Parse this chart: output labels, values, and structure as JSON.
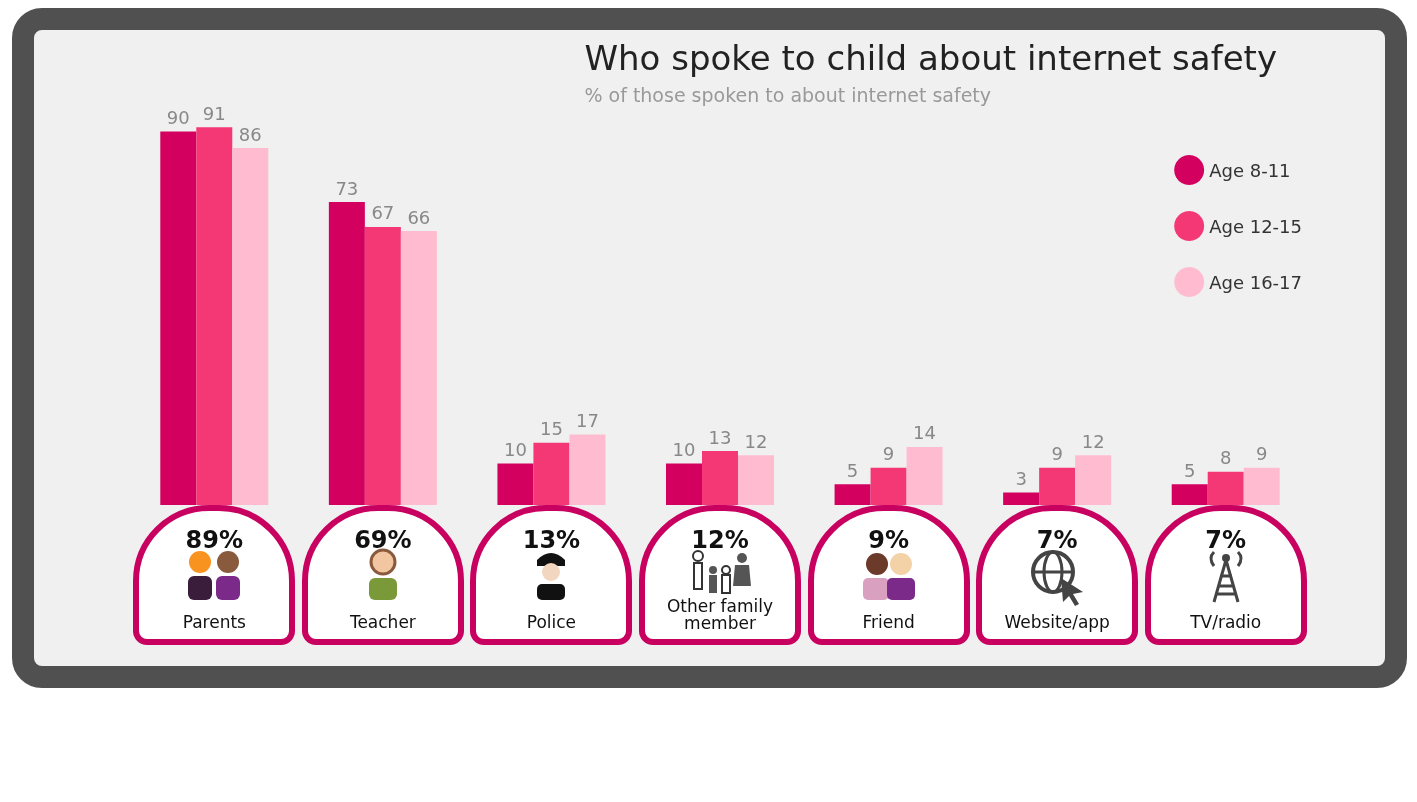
{
  "chart_data": {
    "type": "bar",
    "title": "Who spoke to child about internet safety",
    "subtitle": "% of those spoken to about internet safety",
    "categories": [
      "Parents",
      "Teacher",
      "Police",
      "Other family member",
      "Friend",
      "Website/app",
      "TV/radio"
    ],
    "series": [
      {
        "name": "Age 8-11",
        "color": "#d4005f",
        "values": [
          90,
          73,
          10,
          10,
          5,
          3,
          5
        ]
      },
      {
        "name": "Age 12-15",
        "color": "#f43875",
        "values": [
          91,
          67,
          15,
          13,
          9,
          9,
          8
        ]
      },
      {
        "name": "Age 16-17",
        "color": "#ffbcd0",
        "values": [
          86,
          66,
          17,
          12,
          14,
          12,
          9
        ]
      }
    ],
    "data_labels": true,
    "legend": "top right",
    "grid": false,
    "annotations": [
      "89%",
      "69%",
      "13%",
      "12%",
      "9%",
      "7%",
      "7%"
    ]
  }
}
